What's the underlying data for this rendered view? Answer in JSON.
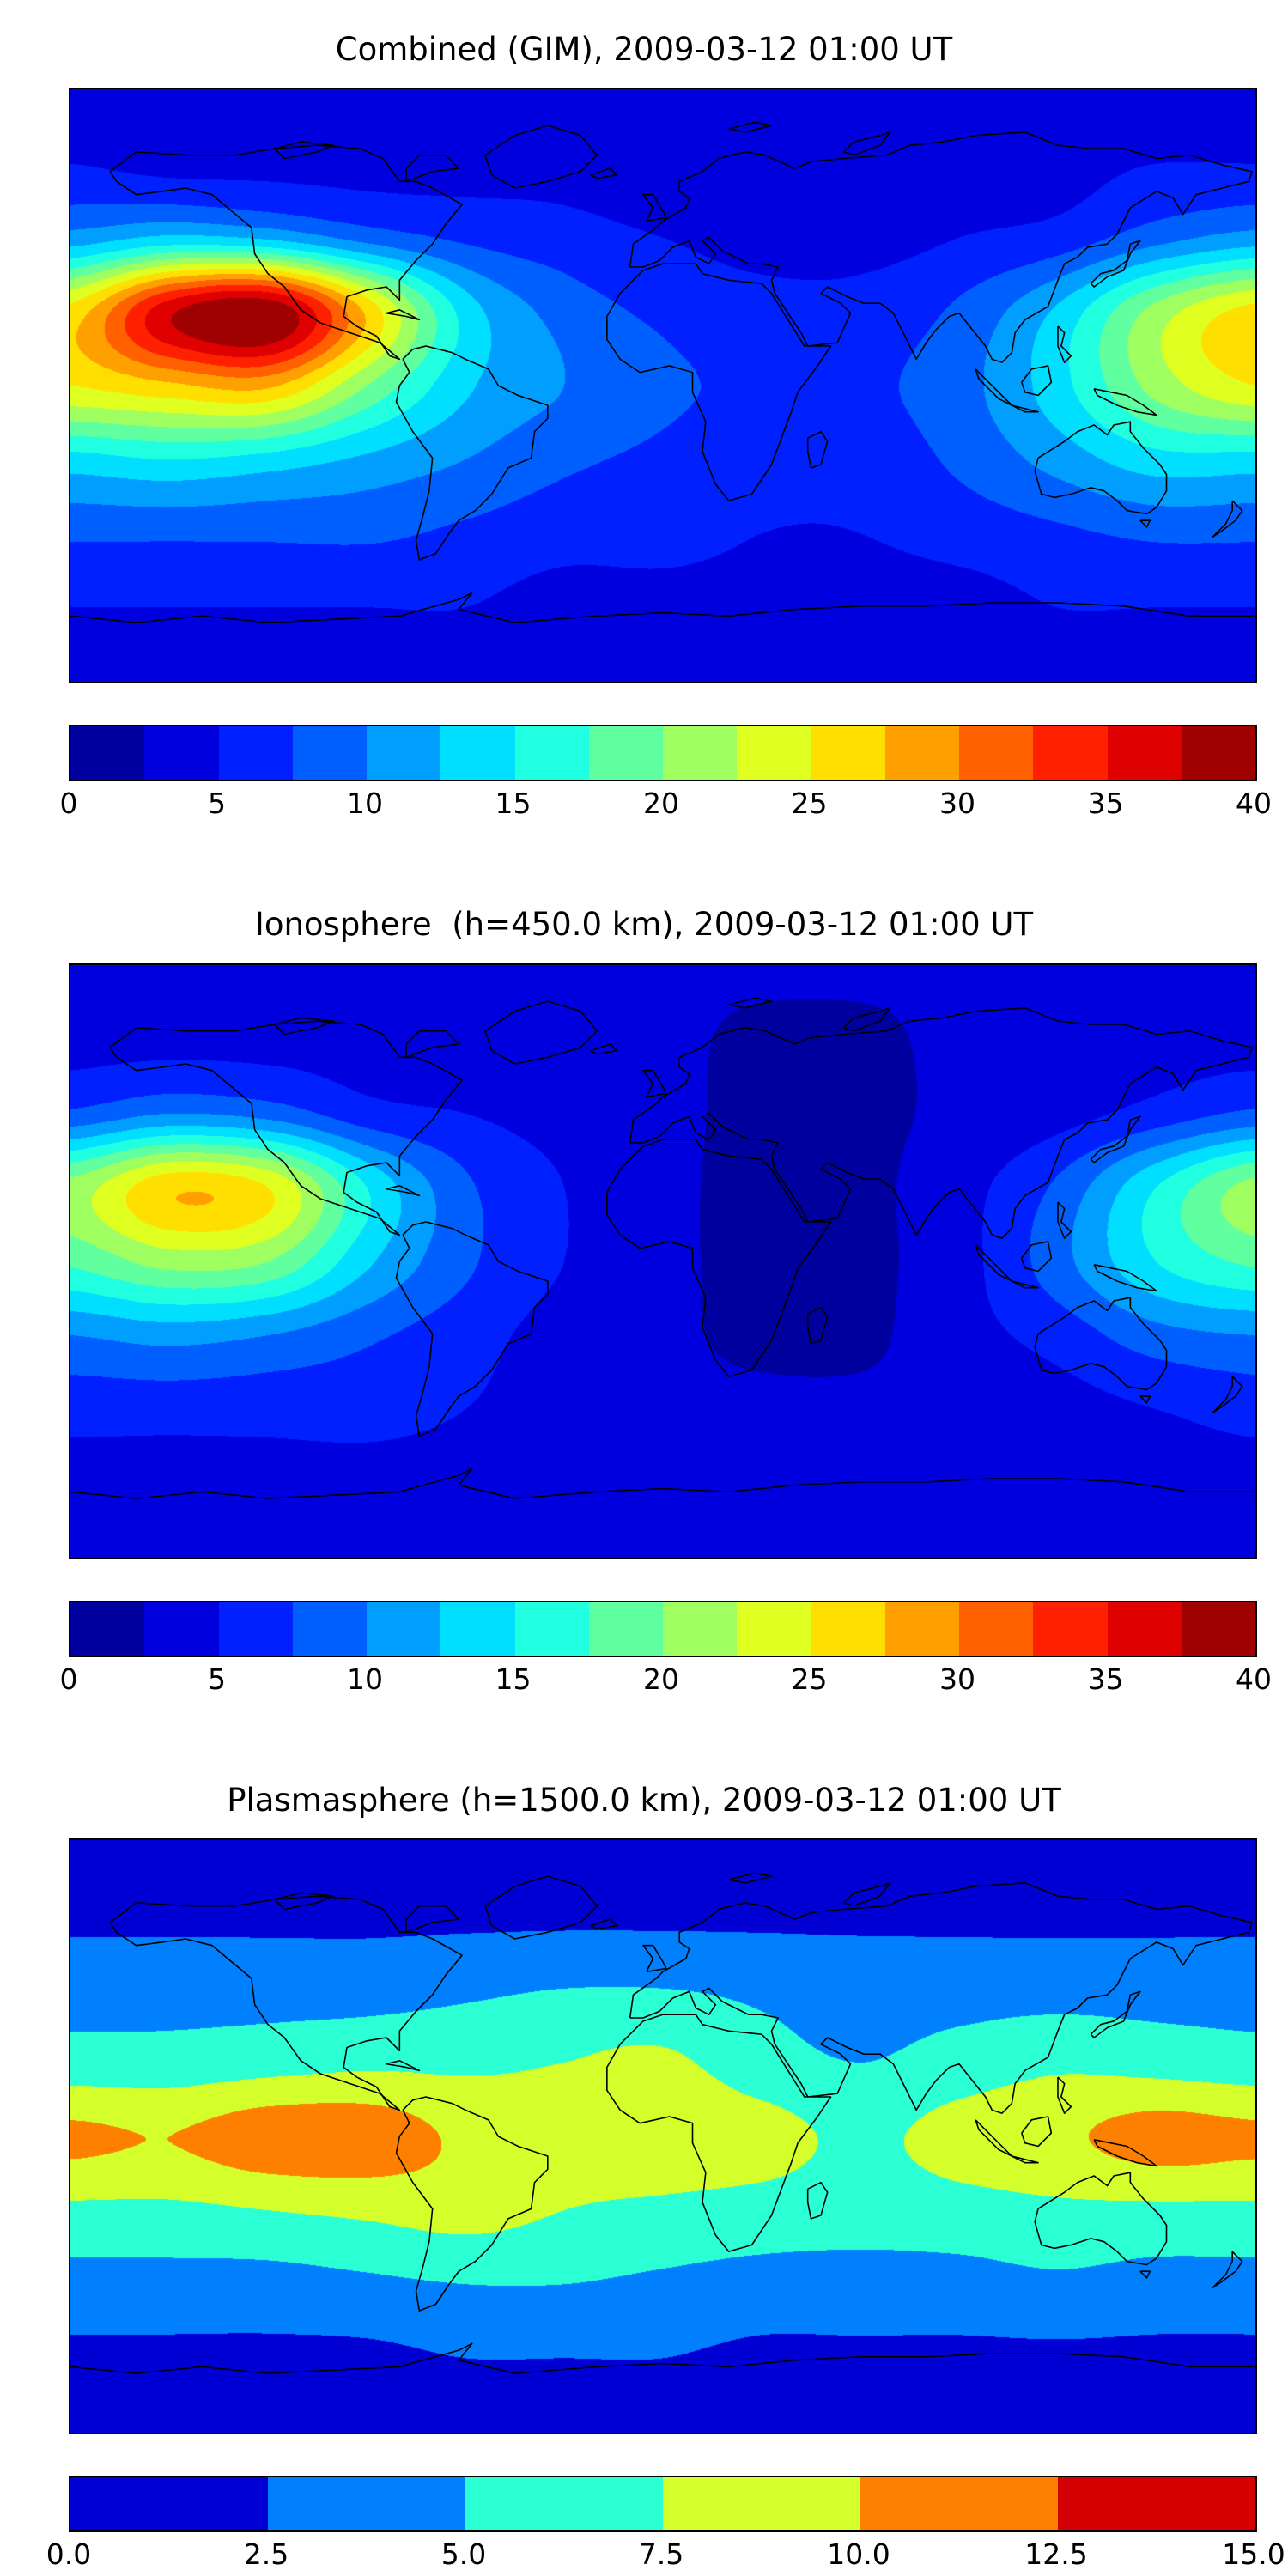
{
  "page": {
    "background": "#ffffff",
    "text_color": "#000000"
  },
  "chart_data": [
    {
      "type": "heatmap",
      "title": "Combined (GIM), 2009-03-12 01:00 UT",
      "colormap": "jet",
      "projection": "equirectangular world map, lon -180..180, lat 90..-90, black coastlines",
      "vmin": 0,
      "vmax": 40,
      "levels": 16,
      "colorbar_ticks": [
        "0",
        "5",
        "10",
        "15",
        "20",
        "25",
        "30",
        "35",
        "40"
      ],
      "colorbar_range": [
        0,
        40
      ],
      "legend_position": "bottom horizontal colorbar",
      "lon": [
        -180,
        -150,
        -120,
        -90,
        -60,
        -30,
        0,
        30,
        60,
        90,
        120,
        150,
        180
      ],
      "lat": [
        90,
        67.5,
        45,
        22.5,
        0,
        -22.5,
        -45,
        -67.5,
        -90
      ],
      "values": [
        [
          3,
          3,
          3,
          3,
          3,
          3,
          3,
          3,
          3,
          3,
          3,
          3,
          3
        ],
        [
          5,
          4,
          4,
          4,
          4,
          4,
          3,
          3,
          3,
          4,
          4,
          5,
          5
        ],
        [
          11,
          13,
          12,
          9,
          7,
          6,
          5,
          4,
          4,
          5,
          6,
          9,
          11
        ],
        [
          26,
          37,
          40,
          27,
          14,
          9,
          7,
          6,
          6,
          8,
          13,
          21,
          26
        ],
        [
          25,
          27,
          28,
          20,
          13,
          10,
          8,
          7,
          7,
          9,
          14,
          21,
          25
        ],
        [
          14,
          15,
          14,
          12,
          10,
          8,
          7,
          6,
          6,
          8,
          11,
          14,
          14
        ],
        [
          8,
          8,
          8,
          8,
          7,
          6,
          6,
          5,
          5,
          6,
          7,
          8,
          8
        ],
        [
          5,
          5,
          5,
          5,
          5,
          4,
          4,
          4,
          4,
          4,
          5,
          5,
          5
        ],
        [
          4,
          4,
          4,
          4,
          4,
          4,
          4,
          4,
          4,
          4,
          4,
          4,
          4
        ]
      ]
    },
    {
      "type": "heatmap",
      "title": "Ionosphere  (h=450.0 km), 2009-03-12 01:00 UT",
      "colormap": "jet",
      "projection": "equirectangular world map, lon -180..180, lat 90..-90, black coastlines",
      "vmin": 0,
      "vmax": 40,
      "levels": 16,
      "colorbar_ticks": [
        "0",
        "5",
        "10",
        "15",
        "20",
        "25",
        "30",
        "35",
        "40"
      ],
      "colorbar_range": [
        0,
        40
      ],
      "legend_position": "bottom horizontal colorbar",
      "lon": [
        -180,
        -150,
        -120,
        -90,
        -60,
        -30,
        0,
        30,
        60,
        90,
        120,
        150,
        180
      ],
      "lat": [
        90,
        67.5,
        45,
        22.5,
        0,
        -22.5,
        -45,
        -67.5,
        -90
      ],
      "values": [
        [
          3,
          3,
          3,
          3,
          3,
          3,
          3,
          3,
          3,
          3,
          3,
          3,
          3
        ],
        [
          4,
          4,
          4,
          4,
          3,
          3,
          3,
          2,
          2,
          3,
          3,
          4,
          4
        ],
        [
          8,
          10,
          9,
          6,
          5,
          4,
          3,
          2,
          2,
          3,
          4,
          6,
          8
        ],
        [
          21,
          27,
          25,
          15,
          8,
          5,
          3,
          2,
          2,
          4,
          8,
          15,
          21
        ],
        [
          18,
          21,
          20,
          13,
          8,
          5,
          3,
          2,
          2,
          4,
          9,
          15,
          18
        ],
        [
          10,
          11,
          10,
          8,
          6,
          4,
          3,
          2,
          2,
          4,
          6,
          9,
          10
        ],
        [
          6,
          6,
          6,
          6,
          5,
          4,
          3,
          3,
          3,
          3,
          4,
          5,
          6
        ],
        [
          4,
          4,
          4,
          4,
          4,
          4,
          3,
          3,
          3,
          3,
          4,
          4,
          4
        ],
        [
          4,
          4,
          4,
          4,
          4,
          4,
          4,
          4,
          4,
          4,
          4,
          4,
          4
        ]
      ]
    },
    {
      "type": "heatmap",
      "title": "Plasmasphere (h=1500.0 km), 2009-03-12 01:00 UT",
      "colormap": "jet",
      "projection": "equirectangular world map, lon -180..180, lat 90..-90, black coastlines",
      "vmin": 0,
      "vmax": 15,
      "levels": 6,
      "colorbar_ticks": [
        "0.0",
        "2.5",
        "5.0",
        "7.5",
        "10.0",
        "12.5",
        "15.0"
      ],
      "colorbar_range": [
        0,
        15
      ],
      "legend_position": "bottom horizontal colorbar",
      "lon": [
        -180,
        -150,
        -120,
        -90,
        -60,
        -30,
        0,
        30,
        60,
        90,
        120,
        150,
        180
      ],
      "lat": [
        90,
        67.5,
        45,
        22.5,
        0,
        -22.5,
        -45,
        -67.5,
        -90
      ],
      "values": [
        [
          1.5,
          1.5,
          1.5,
          1.5,
          1.5,
          1.5,
          1.5,
          1.5,
          1.5,
          1.5,
          1.5,
          1.5,
          1.5
        ],
        [
          2,
          2,
          2,
          2,
          2,
          2,
          2,
          2,
          2,
          2,
          2,
          2,
          2
        ],
        [
          4,
          4,
          4,
          4,
          4.5,
          5,
          5,
          4.5,
          4,
          4,
          4,
          4,
          4
        ],
        [
          6,
          6,
          6.5,
          7,
          7,
          7.5,
          8,
          6,
          5,
          6,
          7,
          6.5,
          6
        ],
        [
          10.5,
          10,
          11.5,
          11.5,
          9.5,
          8.5,
          9,
          8.5,
          7,
          8.5,
          9.5,
          11,
          10.5
        ],
        [
          7,
          7,
          7.5,
          8,
          8.5,
          7.5,
          7,
          6.5,
          6,
          6.5,
          7,
          7,
          7
        ],
        [
          4,
          4,
          4,
          4.5,
          5,
          5,
          4.5,
          4,
          4,
          4,
          4.5,
          4,
          4
        ],
        [
          2,
          2,
          2,
          2,
          2.5,
          2.5,
          2.5,
          2,
          2,
          2,
          2,
          2,
          2
        ],
        [
          1.5,
          1.5,
          1.5,
          1.5,
          1.5,
          1.5,
          1.5,
          1.5,
          1.5,
          1.5,
          1.5,
          1.5,
          1.5
        ]
      ]
    }
  ]
}
